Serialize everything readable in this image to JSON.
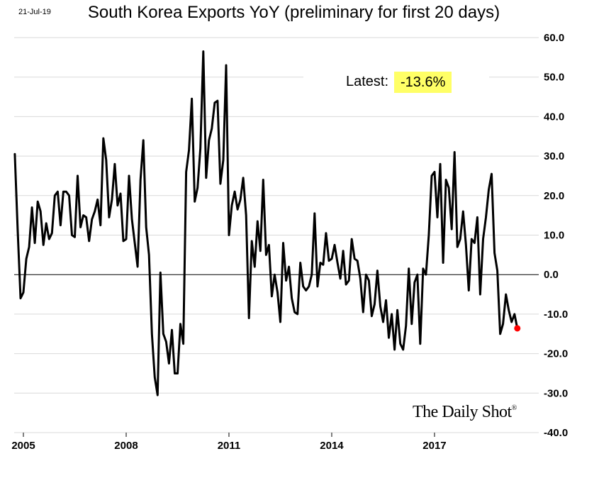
{
  "date_label": "21-Jul-19",
  "brand": {
    "name": "The Daily Shot",
    "mark": "®"
  },
  "latest": {
    "label": "Latest:",
    "value": "-13.6%",
    "highlight_color": "#ffff66"
  },
  "colors": {
    "line": "#000000",
    "marker": "#ff0000",
    "grid": "#d9d9d9",
    "zero_line": "#000000"
  },
  "chart_data": {
    "type": "line",
    "title": "South Korea Exports YoY (preliminary for first 20 days)",
    "xlabel": "",
    "ylabel": "",
    "x_ticks": [
      2005,
      2008,
      2011,
      2014,
      2017
    ],
    "x_tick_labels": [
      "2005",
      "2008",
      "2011",
      "2014",
      "2017"
    ],
    "ylim": [
      -40,
      60
    ],
    "y_ticks": [
      60,
      50,
      40,
      30,
      20,
      10,
      0,
      -10,
      -20,
      -30,
      -40
    ],
    "y_tick_labels": [
      "60.0",
      "50.0",
      "40.0",
      "30.0",
      "20.0",
      "10.0",
      "0.0",
      "-10.0",
      "-20.0",
      "-30.0",
      "-40.0"
    ],
    "grid": true,
    "series": [
      {
        "name": "Exports YoY",
        "start": "2004-11",
        "frequency": "monthly",
        "values": [
          30.5,
          11,
          -6,
          -4.5,
          4,
          7,
          17,
          8,
          18.5,
          16,
          7.5,
          13,
          9,
          10.5,
          20,
          21,
          12.5,
          21,
          21,
          20,
          10,
          9.5,
          25,
          12,
          15,
          14.5,
          8.5,
          14,
          16,
          19,
          12.5,
          34.5,
          29,
          14.5,
          19,
          28,
          17.5,
          20.5,
          8.5,
          9,
          25,
          14,
          8,
          2,
          24,
          34,
          12,
          5,
          -15,
          -26,
          -30.5,
          0.5,
          -15,
          -17,
          -22.5,
          -14,
          -25,
          -25,
          -12.5,
          -17.5,
          26,
          31.5,
          44.5,
          18.5,
          22,
          32,
          56.5,
          24.5,
          34,
          37,
          43.5,
          44,
          23,
          29,
          53,
          10,
          17.5,
          21,
          16.5,
          19,
          24.5,
          15,
          -11,
          8.5,
          2,
          13.5,
          6,
          24,
          5,
          7.5,
          -5.5,
          0,
          -4.5,
          -12,
          8,
          -1.5,
          2,
          -6,
          -9.5,
          -10,
          3,
          -3,
          -4,
          -3,
          0,
          15.5,
          -3,
          3,
          2.5,
          10.5,
          3.5,
          4,
          7.5,
          3,
          -1,
          6,
          -2.5,
          -1.5,
          9,
          4,
          3.5,
          -1,
          -9.5,
          0,
          -1.5,
          -10.5,
          -7.5,
          1,
          -8,
          -12,
          -6.5,
          -16,
          -10,
          -19,
          -9,
          -17.5,
          -19,
          -13,
          1.5,
          -12.5,
          -2,
          0,
          -17.5,
          1.5,
          0,
          10,
          25,
          26,
          14.5,
          28,
          3,
          24,
          22,
          11.5,
          31,
          7,
          9,
          16,
          7.5,
          -4,
          9,
          8,
          14.5,
          -5,
          9,
          14.5,
          21.5,
          25.5,
          5.5,
          1,
          -15,
          -12.5,
          -5,
          -9,
          -12,
          -10,
          -13.6
        ]
      }
    ],
    "latest_marker": {
      "value": -13.6
    }
  }
}
